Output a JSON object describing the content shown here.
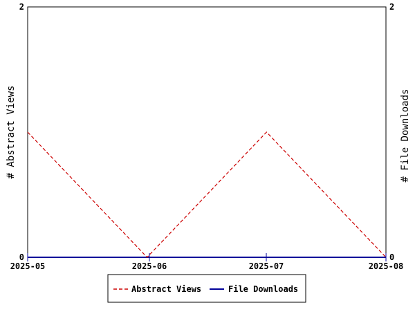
{
  "chart_data": {
    "type": "line",
    "title": "",
    "x": [
      "2025-05",
      "2025-06",
      "2025-07",
      "2025-08"
    ],
    "series": [
      {
        "name": "Abstract Views",
        "axis": "left",
        "values": [
          1,
          0,
          1,
          0
        ],
        "color": "#cc0000",
        "style": "dashed"
      },
      {
        "name": "File Downloads",
        "axis": "right",
        "values": [
          0,
          0,
          0,
          0
        ],
        "color": "#000099",
        "style": "solid"
      }
    ],
    "y_left": {
      "label": "# Abstract Views",
      "ylim": [
        0,
        2
      ],
      "ticks": [
        "0",
        "2"
      ]
    },
    "y_right": {
      "label": "# File Downloads",
      "ylim": [
        0,
        2
      ],
      "ticks": [
        "0",
        "2"
      ]
    },
    "grid": false,
    "legend_placement": "bottom-center",
    "colors": {
      "axis": "#000000",
      "background": "#ffffff",
      "x_tick_marks": "#000099"
    }
  }
}
